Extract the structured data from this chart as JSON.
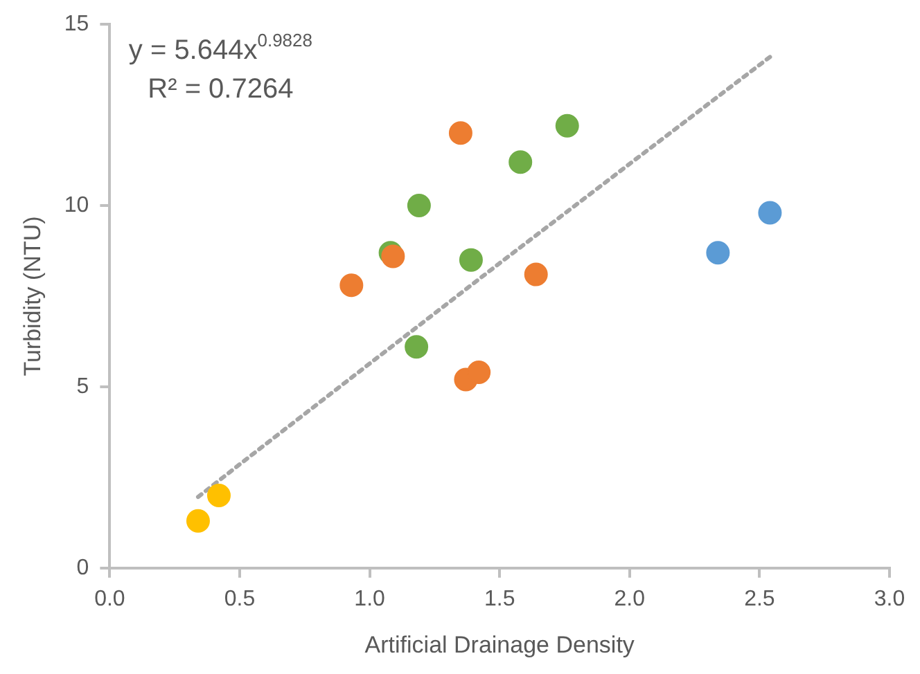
{
  "chart_data": {
    "type": "scatter",
    "xlabel": "Artificial Drainage Density",
    "ylabel": "Turbidity (NTU)",
    "annotations": [
      "y = 5.644x$^{0.9828}$",
      "R² = 0.7264"
    ],
    "xlim": [
      0,
      3
    ],
    "xticks": [
      {
        "value": 0,
        "label": "0.0"
      },
      {
        "value": 0.5,
        "label": "0.5"
      },
      {
        "value": 1,
        "label": "1.0"
      },
      {
        "value": 1.5,
        "label": "1.5"
      },
      {
        "value": 2,
        "label": "2.0"
      },
      {
        "value": 2.5,
        "label": "2.5"
      },
      {
        "value": 3,
        "label": "3.0"
      }
    ],
    "ylim": [
      0,
      15
    ],
    "yticks": [
      0,
      5,
      10,
      15
    ],
    "grid": false,
    "legend": false,
    "marker": "circle",
    "series": [
      {
        "type": "line",
        "color": "#a6a6a6",
        "marker": "none",
        "line_style": "dotted",
        "x": [
          0.34,
          0.5,
          1.0,
          1.5,
          2.0,
          2.54
        ],
        "values": [
          1.96,
          2.86,
          5.64,
          8.41,
          11.15,
          14.1
        ]
      },
      {
        "color": "#ed7d31",
        "x": [
          0.93,
          1.09,
          1.35,
          1.37,
          1.42,
          1.64
        ],
        "values": [
          7.8,
          8.6,
          12.0,
          5.2,
          5.4,
          8.1
        ]
      },
      {
        "color": "#70ad47",
        "x": [
          1.08,
          1.19,
          1.18,
          1.39,
          1.58,
          1.76
        ],
        "values": [
          8.7,
          10.0,
          6.1,
          8.5,
          11.2,
          12.2
        ]
      },
      {
        "color": "#5b9bd5",
        "x": [
          2.34,
          2.54
        ],
        "values": [
          8.7,
          9.8
        ]
      },
      {
        "color": "#ffc000",
        "x": [
          0.34,
          0.42
        ],
        "values": [
          1.3,
          2.0
        ]
      }
    ]
  }
}
